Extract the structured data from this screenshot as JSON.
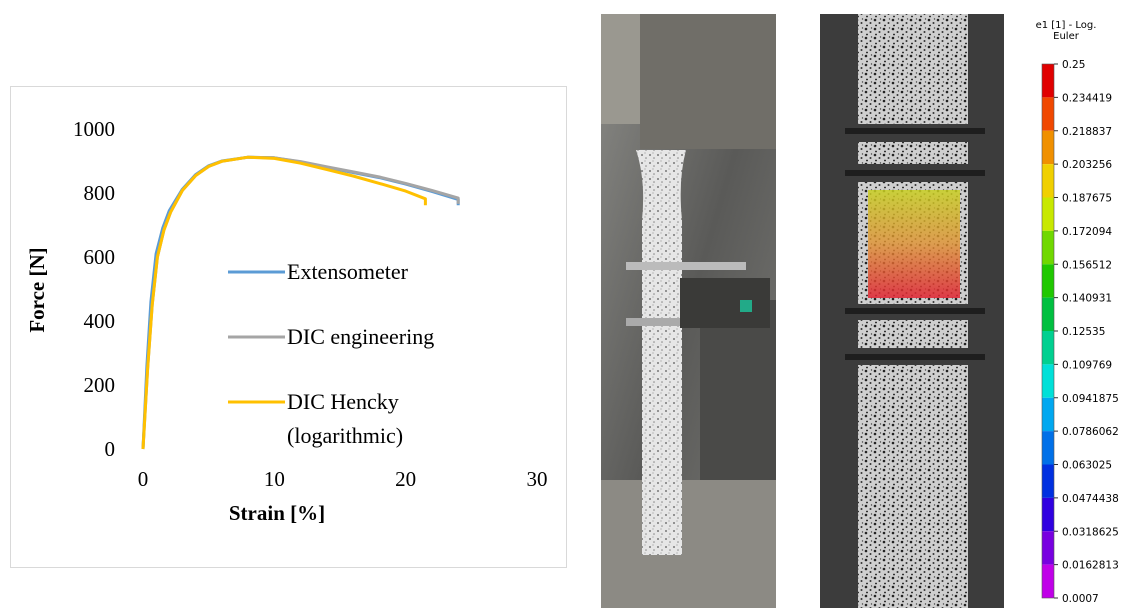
{
  "chart_data": [
    {
      "type": "line",
      "x_label": "Strain [%]",
      "y_label": "Force [N]",
      "xlim": [
        0,
        30
      ],
      "xticks": [
        0,
        10,
        20,
        30
      ],
      "ylim": [
        0,
        1000
      ],
      "yticks": [
        0,
        200,
        400,
        600,
        800,
        1000
      ],
      "grid": false,
      "legend": "center",
      "series": [
        {
          "name": "Extensometer",
          "color": "#5b9bd5",
          "x": [
            0,
            0.3,
            0.6,
            1,
            1.5,
            2,
            3,
            4,
            5,
            6,
            8,
            10,
            12,
            14,
            16,
            18,
            20,
            22,
            24,
            24
          ],
          "values": [
            0,
            260,
            460,
            610,
            690,
            745,
            812,
            857,
            885,
            900,
            912,
            910,
            897,
            880,
            864,
            848,
            828,
            805,
            780,
            762
          ]
        },
        {
          "name": "DIC engineering",
          "color": "#a5a5a5",
          "x": [
            0,
            0.35,
            0.7,
            1.1,
            1.6,
            2.1,
            3,
            4,
            5,
            6,
            8,
            10,
            12,
            14,
            16,
            18,
            20,
            22,
            24,
            24
          ],
          "values": [
            0,
            250,
            450,
            600,
            685,
            740,
            808,
            854,
            883,
            899,
            912,
            910,
            898,
            882,
            866,
            850,
            830,
            808,
            784,
            766
          ]
        },
        {
          "name": "DIC Hencky (logarithmic)",
          "color": "#ffc000",
          "x": [
            0,
            0.35,
            0.7,
            1.1,
            1.6,
            2.1,
            3,
            4,
            5,
            6,
            8,
            10,
            12,
            14,
            16,
            18,
            20,
            21.5,
            21.5
          ],
          "values": [
            0,
            250,
            450,
            600,
            685,
            740,
            808,
            854,
            883,
            899,
            912,
            908,
            893,
            873,
            853,
            830,
            806,
            782,
            762
          ]
        }
      ]
    },
    {
      "type": "colorbar",
      "title": "e1 [1] - Log. Euler",
      "ylim": [
        0.0007,
        0.25
      ],
      "yticks": [
        0.25,
        0.234419,
        0.218837,
        0.203256,
        0.187675,
        0.172094,
        0.156512,
        0.140931,
        0.12535,
        0.109769,
        0.0941875,
        0.0786062,
        0.063025,
        0.0474438,
        0.0318625,
        0.0162813,
        0.0007
      ],
      "colors": [
        "#e00000",
        "#f04800",
        "#f09000",
        "#f0d000",
        "#c8e800",
        "#70d800",
        "#20c800",
        "#00c040",
        "#00d090",
        "#00e0d8",
        "#00a8f0",
        "#0070e8",
        "#0030e0",
        "#3000e0",
        "#7800e0",
        "#c000e8"
      ]
    }
  ]
}
